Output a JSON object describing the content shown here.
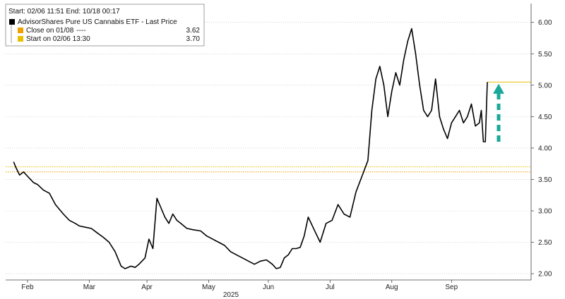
{
  "chart_data": {
    "type": "line",
    "header": "Start: 02/06 11:51  End: 10/18 00:17",
    "series": [
      {
        "name": "AdvisorShares Pure US Cannabis ETF - Last Price",
        "color": "#000000",
        "x": [
          "2025-01-31",
          "2025-02-01",
          "2025-02-03",
          "2025-02-05",
          "2025-02-07",
          "2025-02-10",
          "2025-02-12",
          "2025-02-15",
          "2025-02-18",
          "2025-02-21",
          "2025-02-25",
          "2025-02-28",
          "2025-03-03",
          "2025-03-05",
          "2025-03-08",
          "2025-03-11",
          "2025-03-14",
          "2025-03-17",
          "2025-03-20",
          "2025-03-23",
          "2025-03-26",
          "2025-03-28",
          "2025-03-31",
          "2025-04-02",
          "2025-04-04",
          "2025-04-07",
          "2025-04-09",
          "2025-04-11",
          "2025-04-13",
          "2025-04-15",
          "2025-04-17",
          "2025-04-19",
          "2025-04-21",
          "2025-04-23",
          "2025-04-25",
          "2025-04-28",
          "2025-05-01",
          "2025-05-05",
          "2025-05-08",
          "2025-05-11",
          "2025-05-14",
          "2025-05-17",
          "2025-05-20",
          "2025-05-23",
          "2025-05-26",
          "2025-05-29",
          "2025-06-01",
          "2025-06-04",
          "2025-06-07",
          "2025-06-10",
          "2025-06-12",
          "2025-06-14",
          "2025-06-16",
          "2025-06-18",
          "2025-06-20",
          "2025-06-22",
          "2025-06-24",
          "2025-06-26",
          "2025-06-28",
          "2025-07-01",
          "2025-07-04",
          "2025-07-07",
          "2025-07-10",
          "2025-07-13",
          "2025-07-16",
          "2025-07-19",
          "2025-07-22",
          "2025-07-25",
          "2025-07-28",
          "2025-07-30",
          "2025-08-01",
          "2025-08-03",
          "2025-08-05",
          "2025-08-07",
          "2025-08-09",
          "2025-08-11",
          "2025-08-13",
          "2025-08-15",
          "2025-08-17",
          "2025-08-19",
          "2025-08-21",
          "2025-08-23",
          "2025-08-25",
          "2025-08-27",
          "2025-08-29",
          "2025-08-31",
          "2025-09-02",
          "2025-09-04",
          "2025-09-06",
          "2025-09-08",
          "2025-09-10",
          "2025-09-12",
          "2025-09-14",
          "2025-09-16",
          "2025-09-18",
          "2025-09-20",
          "2025-09-22",
          "2025-09-23",
          "2025-09-24",
          "2025-09-25",
          "2025-09-26"
        ],
        "values": [
          3.78,
          3.7,
          3.57,
          3.62,
          3.55,
          3.45,
          3.42,
          3.33,
          3.28,
          3.1,
          2.95,
          2.85,
          2.8,
          2.76,
          2.74,
          2.72,
          2.65,
          2.58,
          2.5,
          2.35,
          2.12,
          2.08,
          2.12,
          2.1,
          2.15,
          2.25,
          2.55,
          2.4,
          3.2,
          3.05,
          2.9,
          2.8,
          2.95,
          2.85,
          2.8,
          2.72,
          2.7,
          2.68,
          2.6,
          2.55,
          2.5,
          2.45,
          2.35,
          2.3,
          2.25,
          2.2,
          2.15,
          2.2,
          2.22,
          2.15,
          2.08,
          2.1,
          2.25,
          2.3,
          2.4,
          2.4,
          2.42,
          2.6,
          2.9,
          2.7,
          2.5,
          2.8,
          2.85,
          3.1,
          2.95,
          2.9,
          3.3,
          3.55,
          3.8,
          4.6,
          5.1,
          5.3,
          5.0,
          4.5,
          4.9,
          5.2,
          5.0,
          5.4,
          5.7,
          5.9,
          5.5,
          5.0,
          4.6,
          4.5,
          4.6,
          5.1,
          4.5,
          4.3,
          4.15,
          4.4,
          4.5,
          4.6,
          4.4,
          4.5,
          4.7,
          4.35,
          4.4,
          4.6,
          4.1,
          4.1,
          5.05
        ],
        "last_value": "5.05"
      }
    ],
    "reference_lines": [
      {
        "label": "Close on 01/08",
        "marker": "----",
        "value": 3.62,
        "color": "#f0a000",
        "display": "3.62"
      },
      {
        "label": "Start on 02/06 13:30",
        "value": 3.7,
        "color": "#e8c000",
        "display": "3.70"
      }
    ],
    "annotations": [
      {
        "type": "arrow",
        "color": "#1aa89a",
        "from": 4.1,
        "to": 5.0,
        "x": "2025-09-26"
      }
    ],
    "x_axis": {
      "range": [
        "2025-01-27",
        "2025-10-18"
      ],
      "tick_labels": [
        "Feb",
        "Mar",
        "Apr",
        "May",
        "Jun",
        "Jul",
        "Aug",
        "Sep"
      ],
      "tick_dates": [
        "2025-02-07",
        "2025-03-10",
        "2025-04-08",
        "2025-05-09",
        "2025-06-08",
        "2025-07-09",
        "2025-08-09",
        "2025-09-08"
      ],
      "year_label": "2025"
    },
    "y_axis": {
      "range": [
        1.9,
        6.3
      ],
      "ticks": [
        2.0,
        2.5,
        3.0,
        3.5,
        4.0,
        4.5,
        5.0,
        5.5,
        6.0
      ],
      "tick_labels": [
        "2.00",
        "2.50",
        "3.00",
        "3.50",
        "4.00",
        "4.50",
        "5.00",
        "5.50",
        "6.00"
      ],
      "position": "right"
    },
    "grid": "dotted",
    "legend_position": "top-left"
  }
}
